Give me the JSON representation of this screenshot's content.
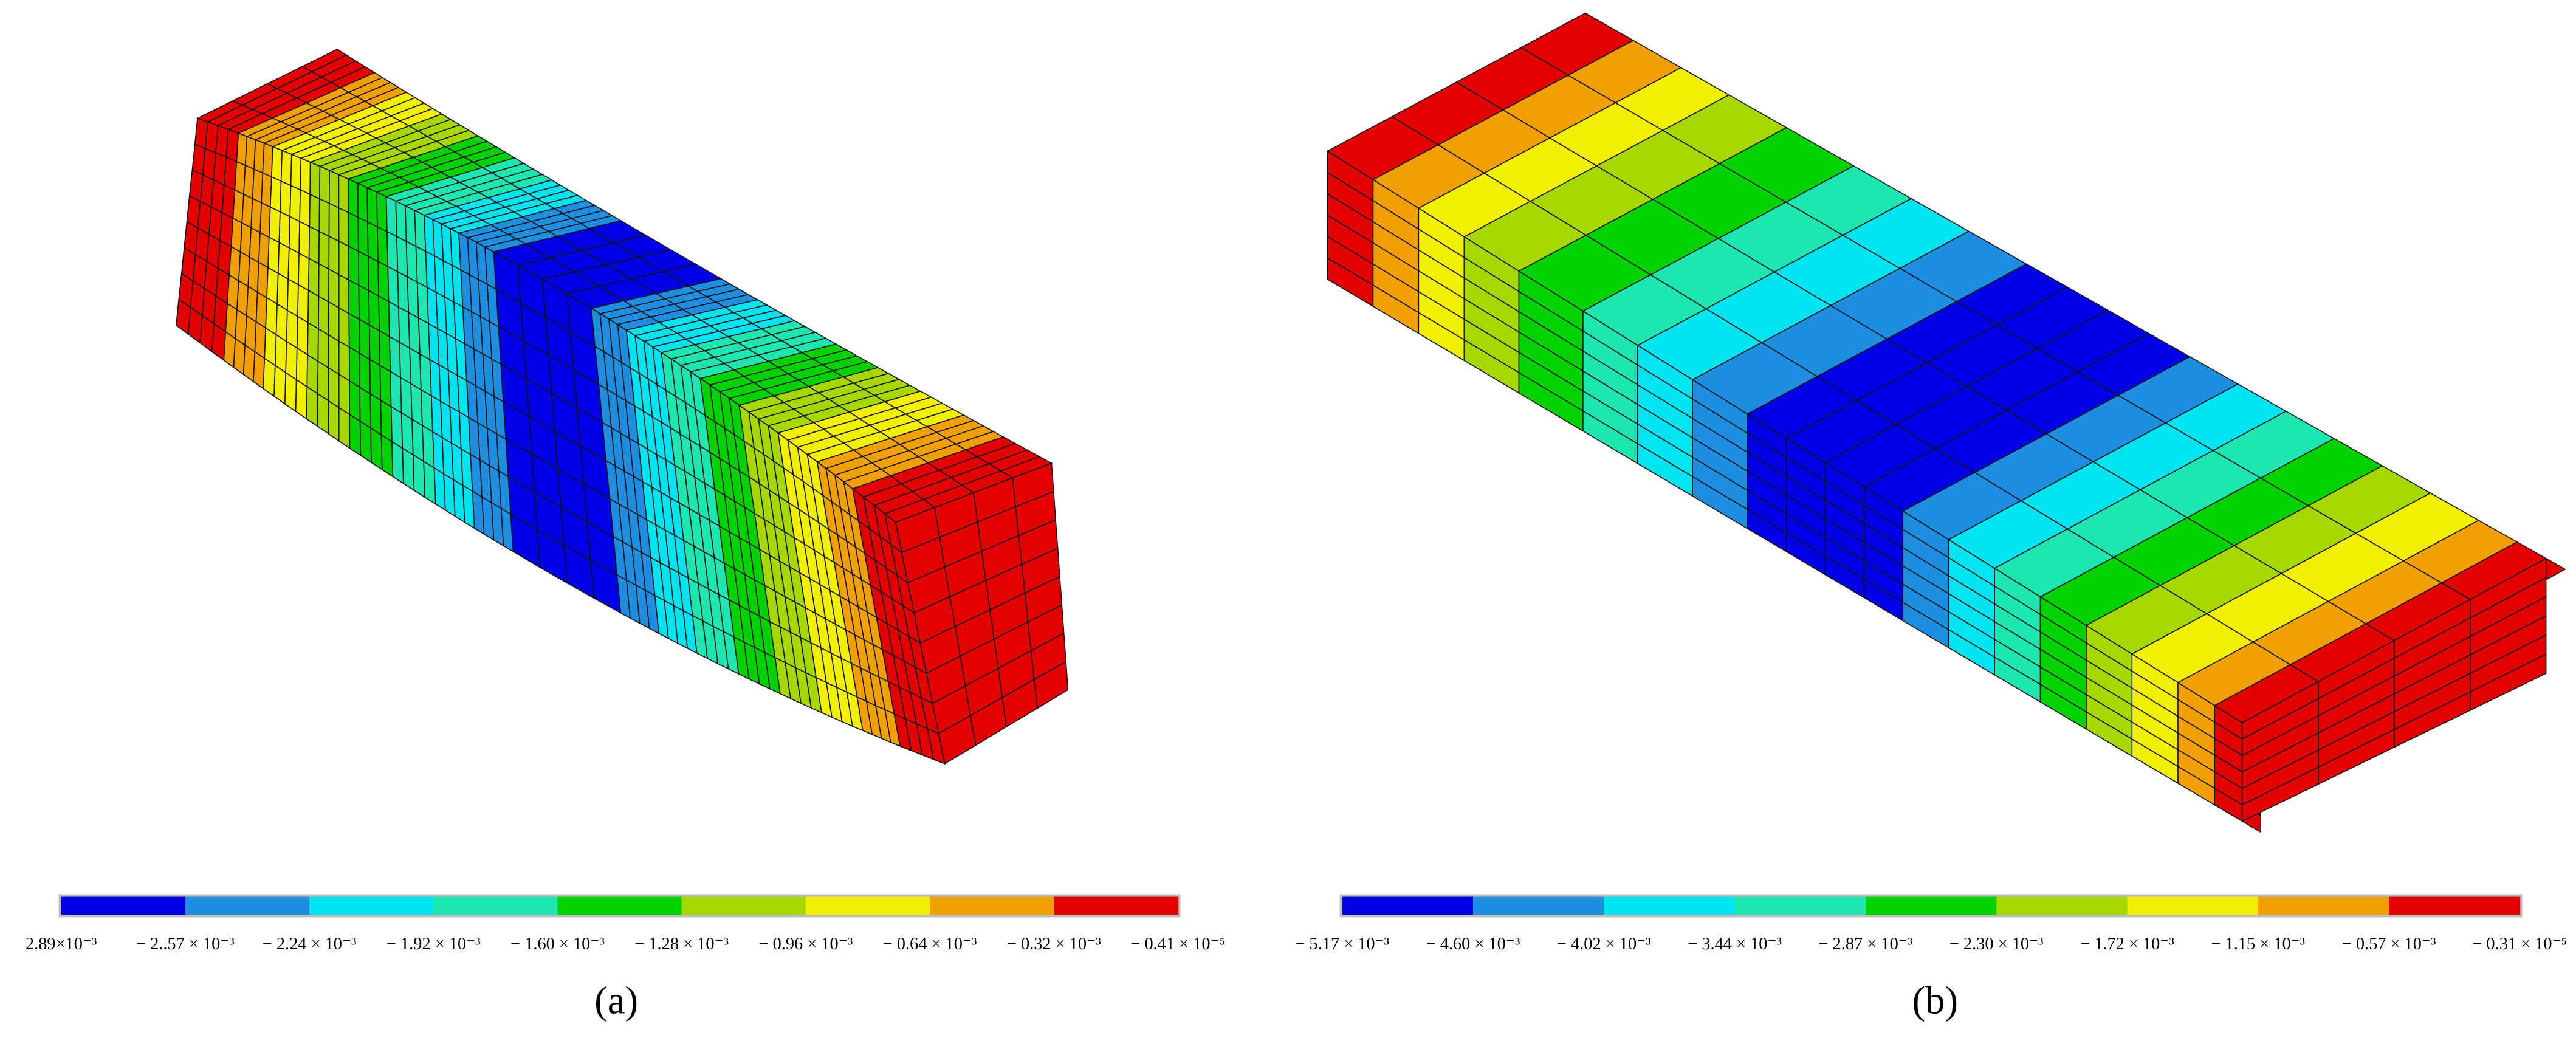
{
  "panels": [
    {
      "caption": "(a)",
      "colorbar": {
        "colors": [
          "#0000e6",
          "#1e8fe0",
          "#00e4f0",
          "#1ee6b0",
          "#00d200",
          "#a6d800",
          "#f2f000",
          "#f0a000",
          "#e20000"
        ],
        "labels": [
          "2.89×10⁻³",
          "− 2..57 × 10⁻³",
          "− 2.24 × 10⁻³",
          "− 1.92 × 10⁻³",
          "− 1.60 × 10⁻³",
          "− 1.28 × 10⁻³",
          "− 0.96 × 10⁻³",
          "− 0.64 × 10⁻³",
          "− 0.32 × 10⁻³",
          "− 0.41 × 10⁻⁵"
        ]
      }
    },
    {
      "caption": "(b)",
      "colorbar": {
        "colors": [
          "#0000e6",
          "#1e8fe0",
          "#00e4f0",
          "#1ee6b0",
          "#00d200",
          "#a6d800",
          "#f2f000",
          "#f0a000",
          "#e20000"
        ],
        "labels": [
          "− 5.17 × 10⁻³",
          "− 4.60 × 10⁻³",
          "− 4.02 × 10⁻³",
          "− 3.44 × 10⁻³",
          "− 2.87 × 10⁻³",
          "− 2.30 × 10⁻³",
          "− 1.72 × 10⁻³",
          "− 1.15 × 10⁻³",
          "− 0.57 × 10⁻³",
          "− 0.31 × 10⁻⁵"
        ]
      }
    }
  ]
}
